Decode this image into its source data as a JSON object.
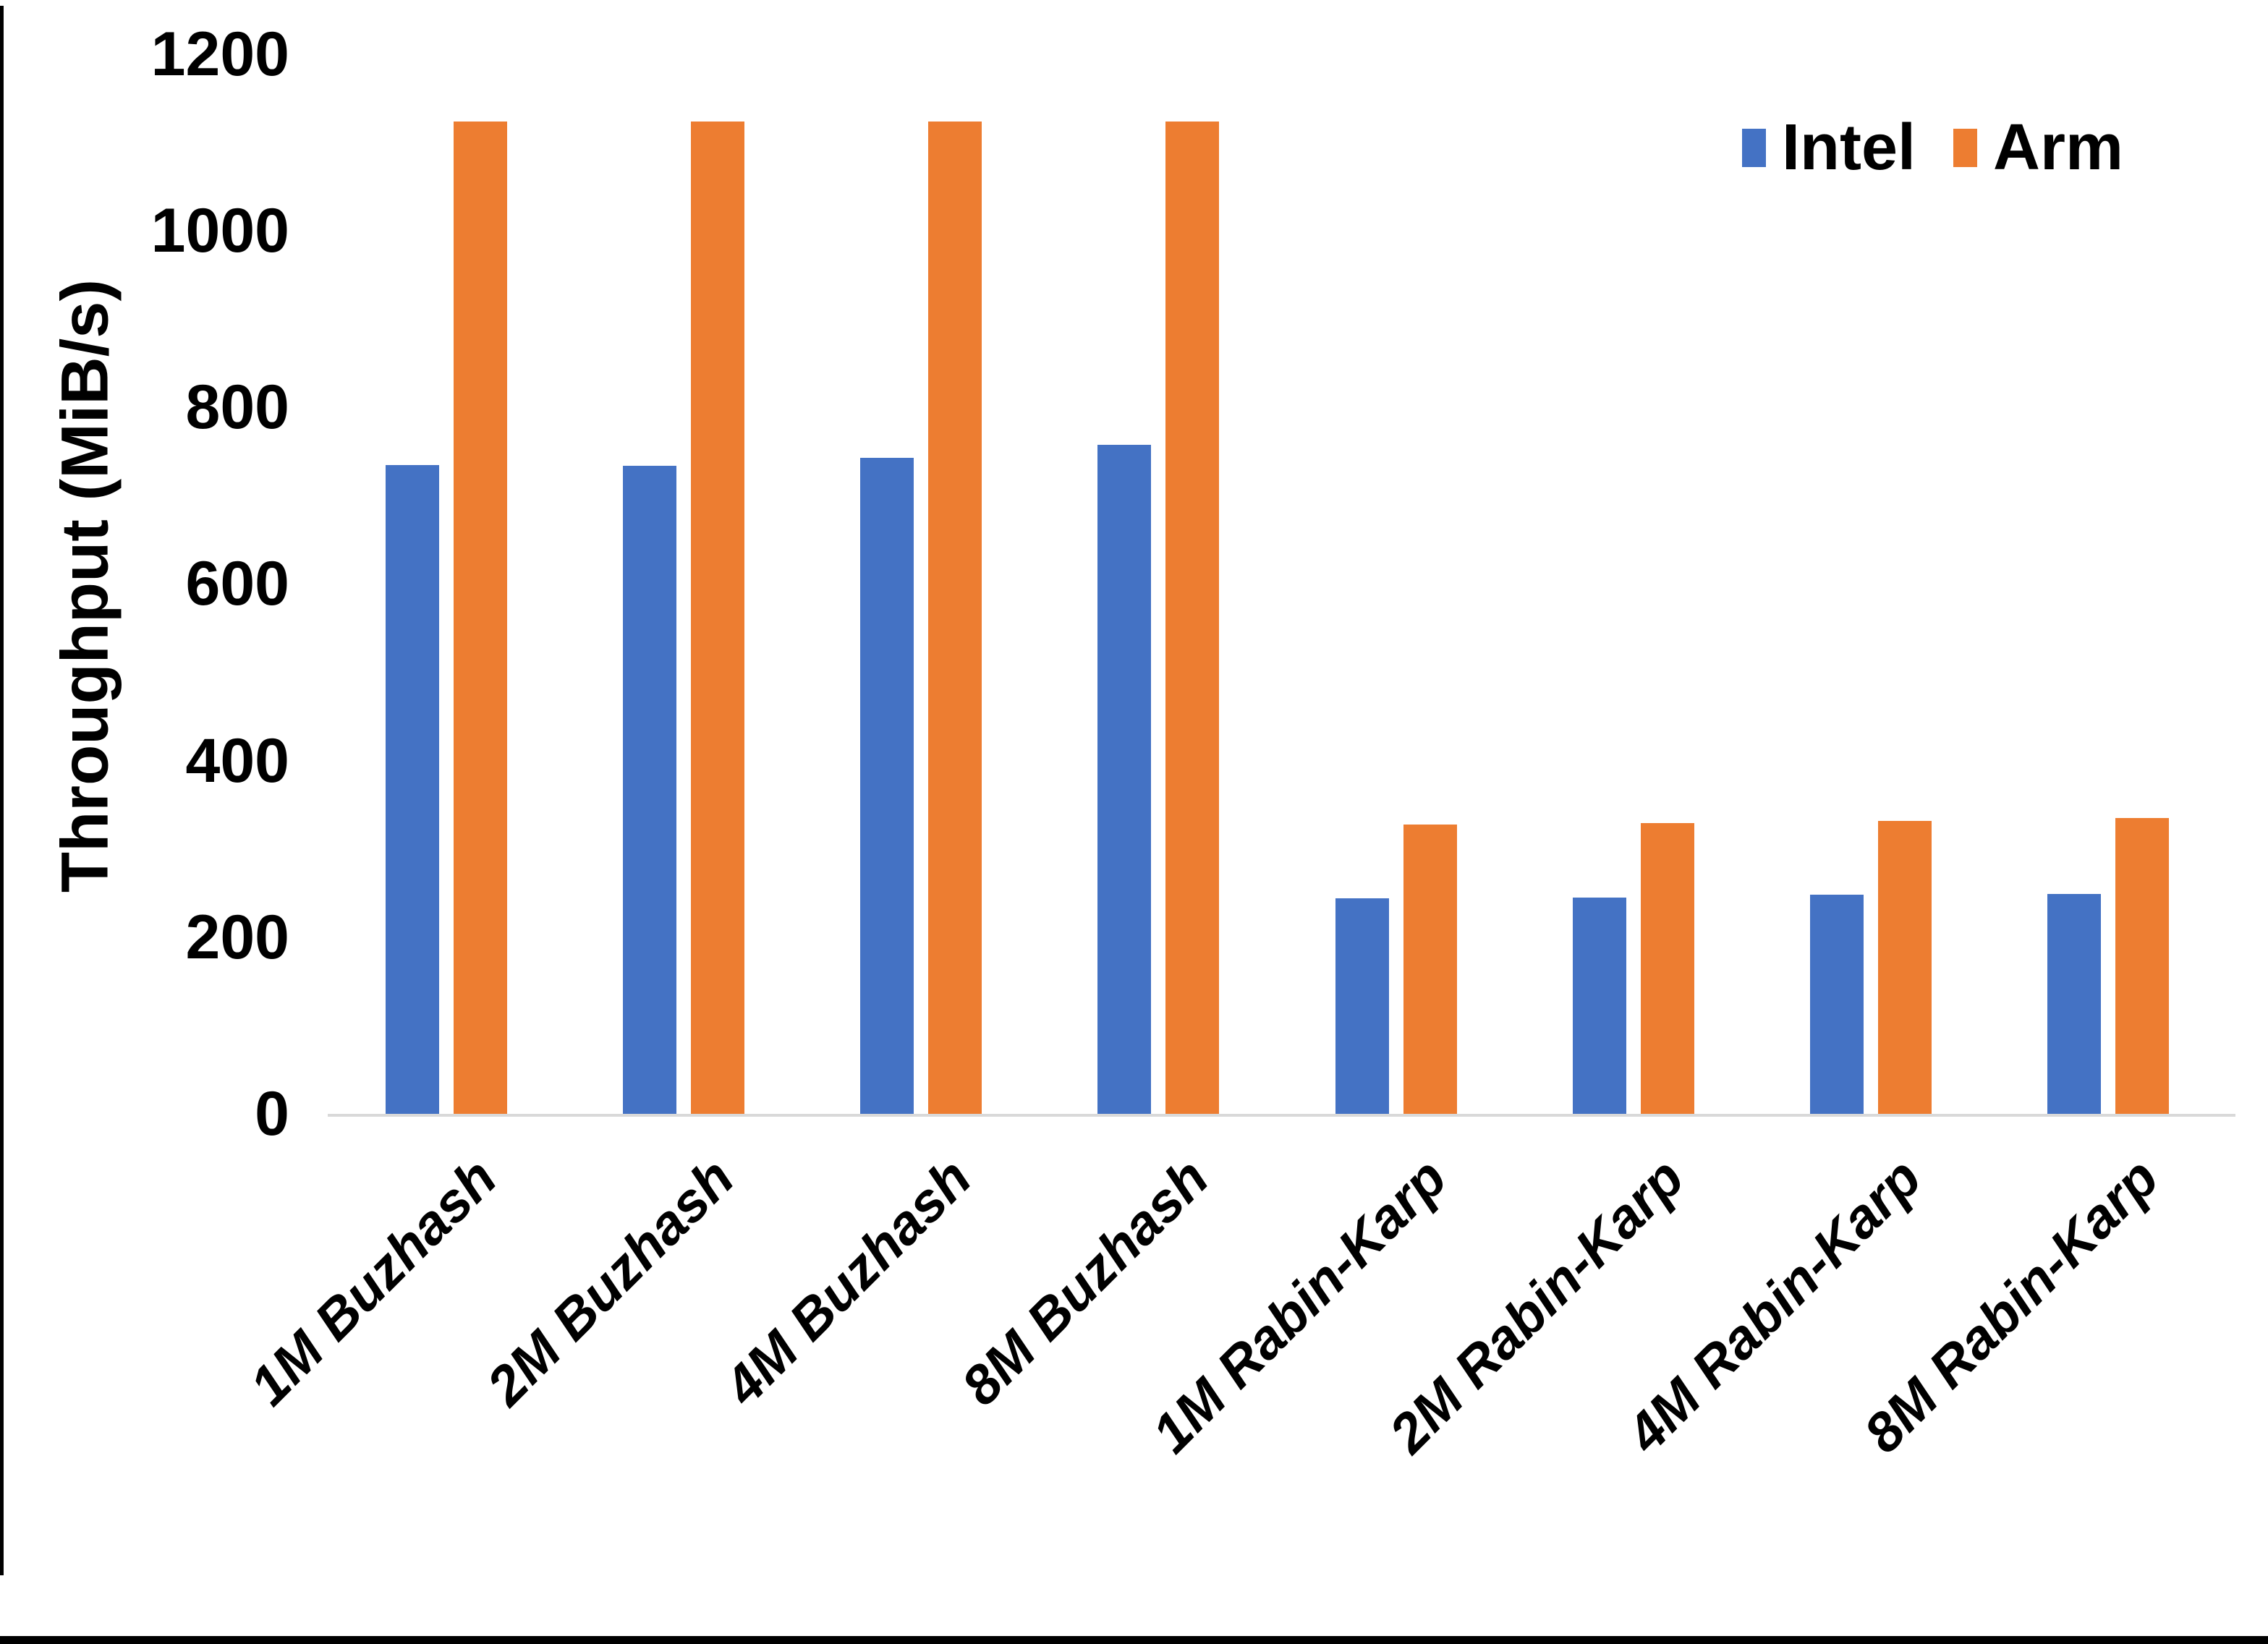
{
  "chart_data": {
    "type": "bar",
    "title": "",
    "xlabel": "",
    "ylabel": "Throughput (MiB/s)",
    "categories": [
      "1M Buzhash",
      "2M Buzhash",
      "4M Buzhash",
      "8M Buzhash",
      "1M Rabin-Karp",
      "2M Rabin-Karp",
      "4M Rabin-Karp",
      "8M Rabin-Karp"
    ],
    "series": [
      {
        "name": "Intel",
        "color": "#4472C4",
        "values": [
          735,
          734,
          743,
          758,
          244,
          245,
          248,
          249
        ]
      },
      {
        "name": "Arm",
        "color": "#ED7D31",
        "values": [
          1124,
          1124,
          1124,
          1124,
          328,
          329,
          332,
          335
        ]
      }
    ],
    "ylim": [
      0,
      1200
    ],
    "yticks": [
      0,
      200,
      400,
      600,
      800,
      1000,
      1200
    ],
    "grid": false,
    "legend_position": "top-right",
    "axis_line_color": "#D9D9D9"
  }
}
